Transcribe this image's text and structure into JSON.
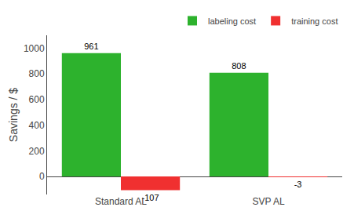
{
  "chart_data": {
    "type": "bar",
    "categories": [
      "Standard AL",
      "SVP AL"
    ],
    "series": [
      {
        "name": "labeling cost",
        "color": "#2db22d",
        "values": [
          961,
          808
        ]
      },
      {
        "name": "training cost",
        "color": "#f03030",
        "values": [
          -107,
          -3
        ]
      }
    ],
    "ylabel": "Savings / $",
    "ylim": [
      -140,
      1100
    ],
    "yticks": [
      0,
      200,
      400,
      600,
      800,
      1000
    ],
    "legend": "upper right",
    "grid": false,
    "data_labels": true
  }
}
